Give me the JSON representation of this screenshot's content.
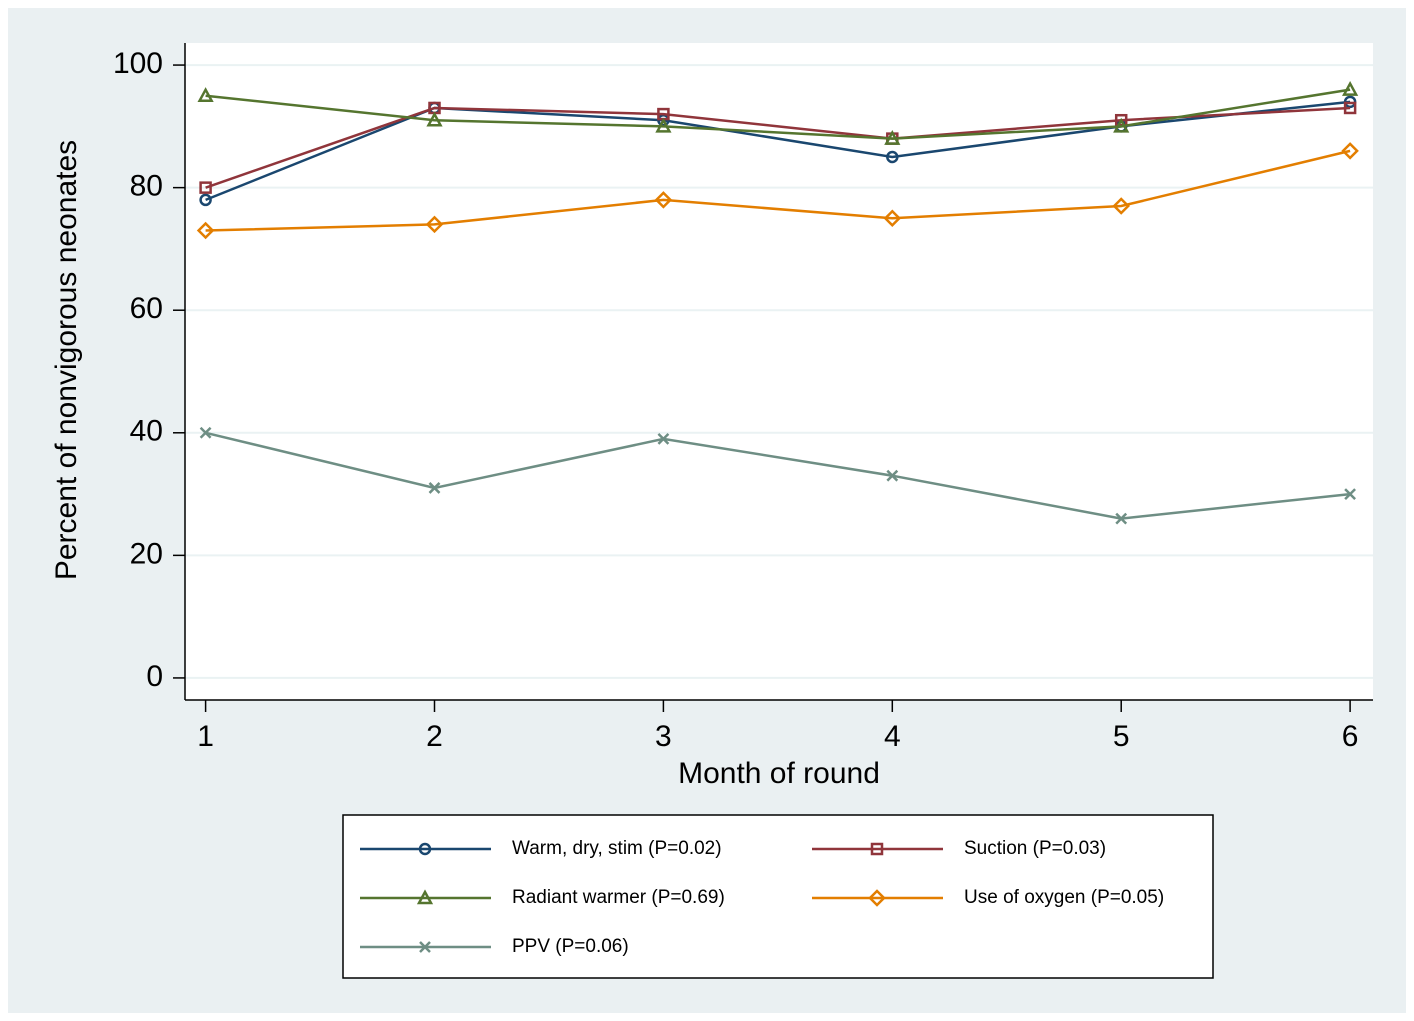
{
  "chart_data": {
    "type": "line",
    "x": [
      1,
      2,
      3,
      4,
      5,
      6
    ],
    "xlim": [
      0.91,
      6.1
    ],
    "xticks": [
      1,
      2,
      3,
      4,
      5,
      6
    ],
    "ylim": [
      -3.6,
      103.6
    ],
    "yticks": [
      0,
      20,
      40,
      60,
      80,
      100
    ],
    "grid": true,
    "xlabel": "Month of round",
    "ylabel": "Percent of nonvigorous neonates",
    "series": [
      {
        "name": "Warm, dry, stim (P=0.02)",
        "color": "#1a476f",
        "marker": "circle",
        "values": [
          78,
          93,
          91,
          85,
          90,
          94
        ]
      },
      {
        "name": "Suction (P=0.03)",
        "color": "#90353b",
        "marker": "square",
        "values": [
          80,
          93,
          92,
          88,
          91,
          93
        ]
      },
      {
        "name": "Radiant warmer (P=0.69)",
        "color": "#55752f",
        "marker": "triangle",
        "values": [
          95,
          91,
          90,
          88,
          90,
          96
        ]
      },
      {
        "name": "Use of oxygen (P=0.05)",
        "color": "#e37e00",
        "marker": "diamond",
        "values": [
          73,
          74,
          78,
          75,
          77,
          86
        ]
      },
      {
        "name": "PPV (P=0.06)",
        "color": "#6e8e84",
        "marker": "x",
        "values": [
          40,
          31,
          39,
          33,
          26,
          30
        ]
      }
    ]
  }
}
